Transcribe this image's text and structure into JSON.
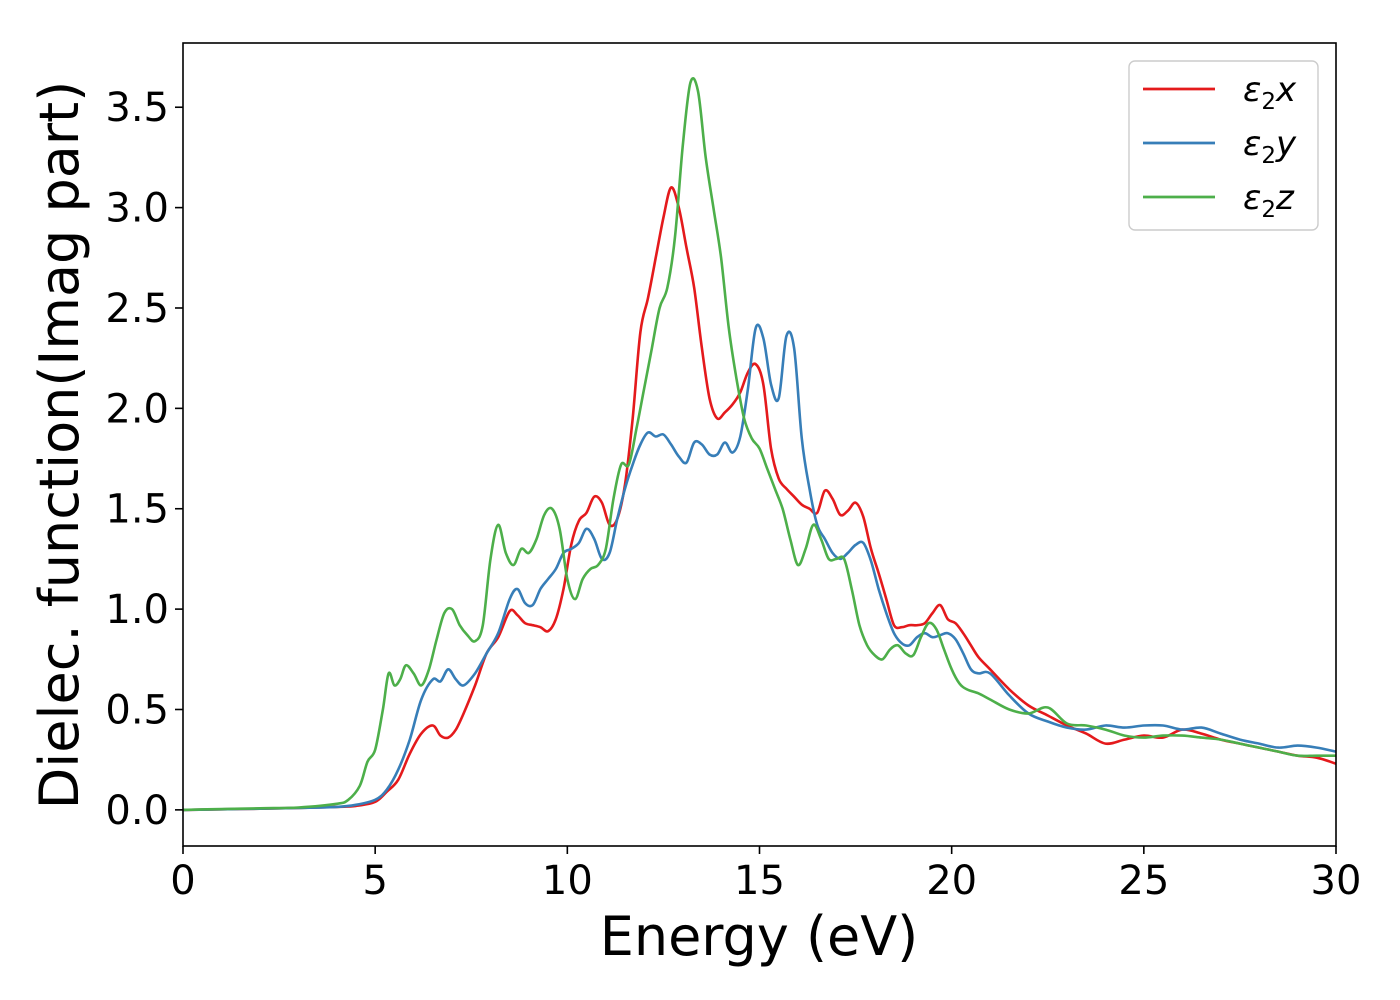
{
  "chart_data": {
    "type": "line",
    "xlabel": "Energy (eV)",
    "ylabel": "Dielec. function(Imag part)",
    "xlim": [
      0,
      30
    ],
    "ylim": [
      -0.18,
      3.82
    ],
    "xticks": [
      0,
      5,
      10,
      15,
      20,
      25,
      30
    ],
    "xtick_labels": [
      "0",
      "5",
      "10",
      "15",
      "20",
      "25",
      "30"
    ],
    "yticks": [
      0.0,
      0.5,
      1.0,
      1.5,
      2.0,
      2.5,
      3.0,
      3.5
    ],
    "ytick_labels": [
      "0.0",
      "0.5",
      "1.0",
      "1.5",
      "2.0",
      "2.5",
      "3.0",
      "3.5"
    ],
    "grid": false,
    "legend_position": "top-right",
    "series": [
      {
        "name": "ε2x",
        "legend_main": "ε",
        "legend_sub": "2",
        "legend_tail": "x",
        "color": "#e41a1c",
        "x": [
          0,
          1,
          2,
          3,
          4,
          4.5,
          5,
          5.3,
          5.6,
          5.9,
          6.2,
          6.5,
          6.7,
          6.9,
          7.1,
          7.3,
          7.6,
          7.9,
          8.2,
          8.5,
          8.7,
          8.9,
          9.1,
          9.3,
          9.5,
          9.7,
          9.9,
          10.1,
          10.3,
          10.5,
          10.7,
          10.9,
          11.1,
          11.3,
          11.5,
          11.7,
          11.9,
          12.1,
          12.3,
          12.5,
          12.7,
          12.9,
          13.1,
          13.3,
          13.5,
          13.7,
          13.9,
          14.1,
          14.3,
          14.5,
          14.7,
          14.9,
          15.1,
          15.3,
          15.5,
          15.7,
          15.9,
          16.1,
          16.3,
          16.5,
          16.7,
          16.9,
          17.1,
          17.3,
          17.5,
          17.7,
          17.9,
          18.1,
          18.3,
          18.5,
          18.7,
          18.9,
          19.1,
          19.3,
          19.5,
          19.7,
          19.9,
          20.1,
          20.3,
          20.5,
          20.7,
          21,
          21.5,
          22,
          22.5,
          23,
          23.5,
          24,
          24.5,
          25,
          25.5,
          26,
          26.5,
          27,
          27.5,
          28,
          28.5,
          29,
          29.5,
          30
        ],
        "values": [
          0,
          0.003,
          0.006,
          0.01,
          0.015,
          0.02,
          0.04,
          0.09,
          0.15,
          0.28,
          0.38,
          0.42,
          0.37,
          0.36,
          0.4,
          0.48,
          0.62,
          0.78,
          0.86,
          0.99,
          0.97,
          0.93,
          0.92,
          0.91,
          0.89,
          0.95,
          1.1,
          1.32,
          1.44,
          1.48,
          1.56,
          1.53,
          1.42,
          1.45,
          1.62,
          1.95,
          2.38,
          2.55,
          2.75,
          2.95,
          3.1,
          3.0,
          2.8,
          2.6,
          2.3,
          2.05,
          1.95,
          1.98,
          2.02,
          2.08,
          2.18,
          2.22,
          2.12,
          1.8,
          1.65,
          1.6,
          1.56,
          1.52,
          1.5,
          1.48,
          1.59,
          1.55,
          1.47,
          1.49,
          1.53,
          1.46,
          1.3,
          1.18,
          1.05,
          0.92,
          0.91,
          0.92,
          0.92,
          0.93,
          0.98,
          1.02,
          0.95,
          0.93,
          0.88,
          0.82,
          0.76,
          0.7,
          0.6,
          0.52,
          0.47,
          0.42,
          0.38,
          0.33,
          0.35,
          0.37,
          0.36,
          0.4,
          0.38,
          0.35,
          0.33,
          0.31,
          0.29,
          0.27,
          0.26,
          0.23
        ]
      },
      {
        "name": "ε2y",
        "legend_main": "ε",
        "legend_sub": "2",
        "legend_tail": "y",
        "color": "#377eb8",
        "x": [
          0,
          1,
          2,
          3,
          4,
          4.5,
          5,
          5.3,
          5.6,
          5.9,
          6.2,
          6.5,
          6.7,
          6.9,
          7.1,
          7.3,
          7.6,
          7.9,
          8.2,
          8.5,
          8.7,
          8.9,
          9.1,
          9.3,
          9.5,
          9.7,
          9.9,
          10.1,
          10.3,
          10.5,
          10.7,
          10.9,
          11.1,
          11.3,
          11.5,
          11.7,
          11.9,
          12.1,
          12.3,
          12.5,
          12.7,
          12.9,
          13.1,
          13.3,
          13.5,
          13.7,
          13.9,
          14.1,
          14.3,
          14.5,
          14.7,
          14.9,
          15.1,
          15.3,
          15.5,
          15.7,
          15.9,
          16.1,
          16.3,
          16.5,
          16.7,
          16.9,
          17.1,
          17.3,
          17.5,
          17.7,
          17.9,
          18.1,
          18.3,
          18.5,
          18.7,
          18.9,
          19.1,
          19.3,
          19.5,
          19.7,
          19.9,
          20.1,
          20.3,
          20.5,
          20.7,
          21,
          21.5,
          22,
          22.5,
          23,
          23.5,
          24,
          24.5,
          25,
          25.5,
          26,
          26.5,
          27,
          27.5,
          28,
          28.5,
          29,
          29.5,
          30
        ],
        "values": [
          0,
          0.003,
          0.006,
          0.01,
          0.015,
          0.025,
          0.05,
          0.1,
          0.2,
          0.35,
          0.55,
          0.65,
          0.64,
          0.7,
          0.65,
          0.62,
          0.68,
          0.78,
          0.88,
          1.05,
          1.1,
          1.03,
          1.02,
          1.1,
          1.15,
          1.2,
          1.28,
          1.3,
          1.33,
          1.4,
          1.35,
          1.25,
          1.28,
          1.45,
          1.6,
          1.72,
          1.82,
          1.88,
          1.86,
          1.87,
          1.82,
          1.76,
          1.73,
          1.83,
          1.82,
          1.77,
          1.77,
          1.83,
          1.78,
          1.86,
          2.1,
          2.4,
          2.35,
          2.12,
          2.05,
          2.36,
          2.3,
          1.85,
          1.6,
          1.42,
          1.35,
          1.28,
          1.25,
          1.28,
          1.32,
          1.33,
          1.24,
          1.1,
          0.98,
          0.88,
          0.83,
          0.82,
          0.86,
          0.88,
          0.86,
          0.87,
          0.88,
          0.85,
          0.78,
          0.7,
          0.68,
          0.68,
          0.57,
          0.48,
          0.44,
          0.41,
          0.4,
          0.42,
          0.41,
          0.42,
          0.42,
          0.4,
          0.41,
          0.38,
          0.35,
          0.33,
          0.31,
          0.32,
          0.31,
          0.29
        ]
      },
      {
        "name": "ε2z",
        "legend_main": "ε",
        "legend_sub": "2",
        "legend_tail": "z",
        "color": "#4daf4a",
        "x": [
          0,
          1,
          2,
          3,
          4,
          4.3,
          4.6,
          4.8,
          5,
          5.2,
          5.35,
          5.5,
          5.65,
          5.8,
          6.0,
          6.2,
          6.4,
          6.6,
          6.8,
          7.0,
          7.2,
          7.4,
          7.6,
          7.8,
          8.0,
          8.2,
          8.4,
          8.6,
          8.8,
          9.0,
          9.2,
          9.4,
          9.6,
          9.8,
          10.0,
          10.2,
          10.4,
          10.6,
          10.8,
          11.0,
          11.2,
          11.4,
          11.6,
          11.8,
          12.0,
          12.2,
          12.4,
          12.6,
          12.8,
          13.0,
          13.2,
          13.4,
          13.6,
          13.8,
          14.0,
          14.2,
          14.4,
          14.6,
          14.8,
          15.0,
          15.2,
          15.4,
          15.6,
          15.8,
          16.0,
          16.2,
          16.4,
          16.6,
          16.8,
          17.0,
          17.2,
          17.4,
          17.6,
          17.8,
          18.0,
          18.2,
          18.4,
          18.6,
          18.8,
          19.0,
          19.2,
          19.4,
          19.6,
          19.8,
          20.0,
          20.2,
          20.4,
          20.7,
          21,
          21.5,
          22,
          22.5,
          23,
          23.5,
          24,
          24.5,
          25,
          25.5,
          26,
          26.5,
          27,
          27.5,
          28,
          28.5,
          29,
          29.5,
          30
        ],
        "values": [
          0,
          0.004,
          0.008,
          0.012,
          0.03,
          0.05,
          0.12,
          0.24,
          0.3,
          0.5,
          0.68,
          0.62,
          0.65,
          0.72,
          0.68,
          0.62,
          0.7,
          0.85,
          0.98,
          1.0,
          0.92,
          0.87,
          0.84,
          0.92,
          1.25,
          1.42,
          1.28,
          1.22,
          1.3,
          1.28,
          1.35,
          1.47,
          1.5,
          1.4,
          1.15,
          1.05,
          1.15,
          1.2,
          1.22,
          1.3,
          1.55,
          1.72,
          1.72,
          1.9,
          2.1,
          2.3,
          2.5,
          2.6,
          2.85,
          3.3,
          3.62,
          3.58,
          3.25,
          3.0,
          2.75,
          2.4,
          2.15,
          1.95,
          1.85,
          1.8,
          1.7,
          1.6,
          1.5,
          1.35,
          1.22,
          1.3,
          1.42,
          1.35,
          1.25,
          1.25,
          1.25,
          1.1,
          0.92,
          0.82,
          0.77,
          0.75,
          0.8,
          0.82,
          0.78,
          0.77,
          0.86,
          0.93,
          0.9,
          0.8,
          0.7,
          0.63,
          0.6,
          0.58,
          0.55,
          0.5,
          0.48,
          0.51,
          0.43,
          0.42,
          0.4,
          0.37,
          0.36,
          0.37,
          0.37,
          0.36,
          0.35,
          0.33,
          0.31,
          0.29,
          0.27,
          0.27,
          0.27
        ]
      }
    ]
  }
}
